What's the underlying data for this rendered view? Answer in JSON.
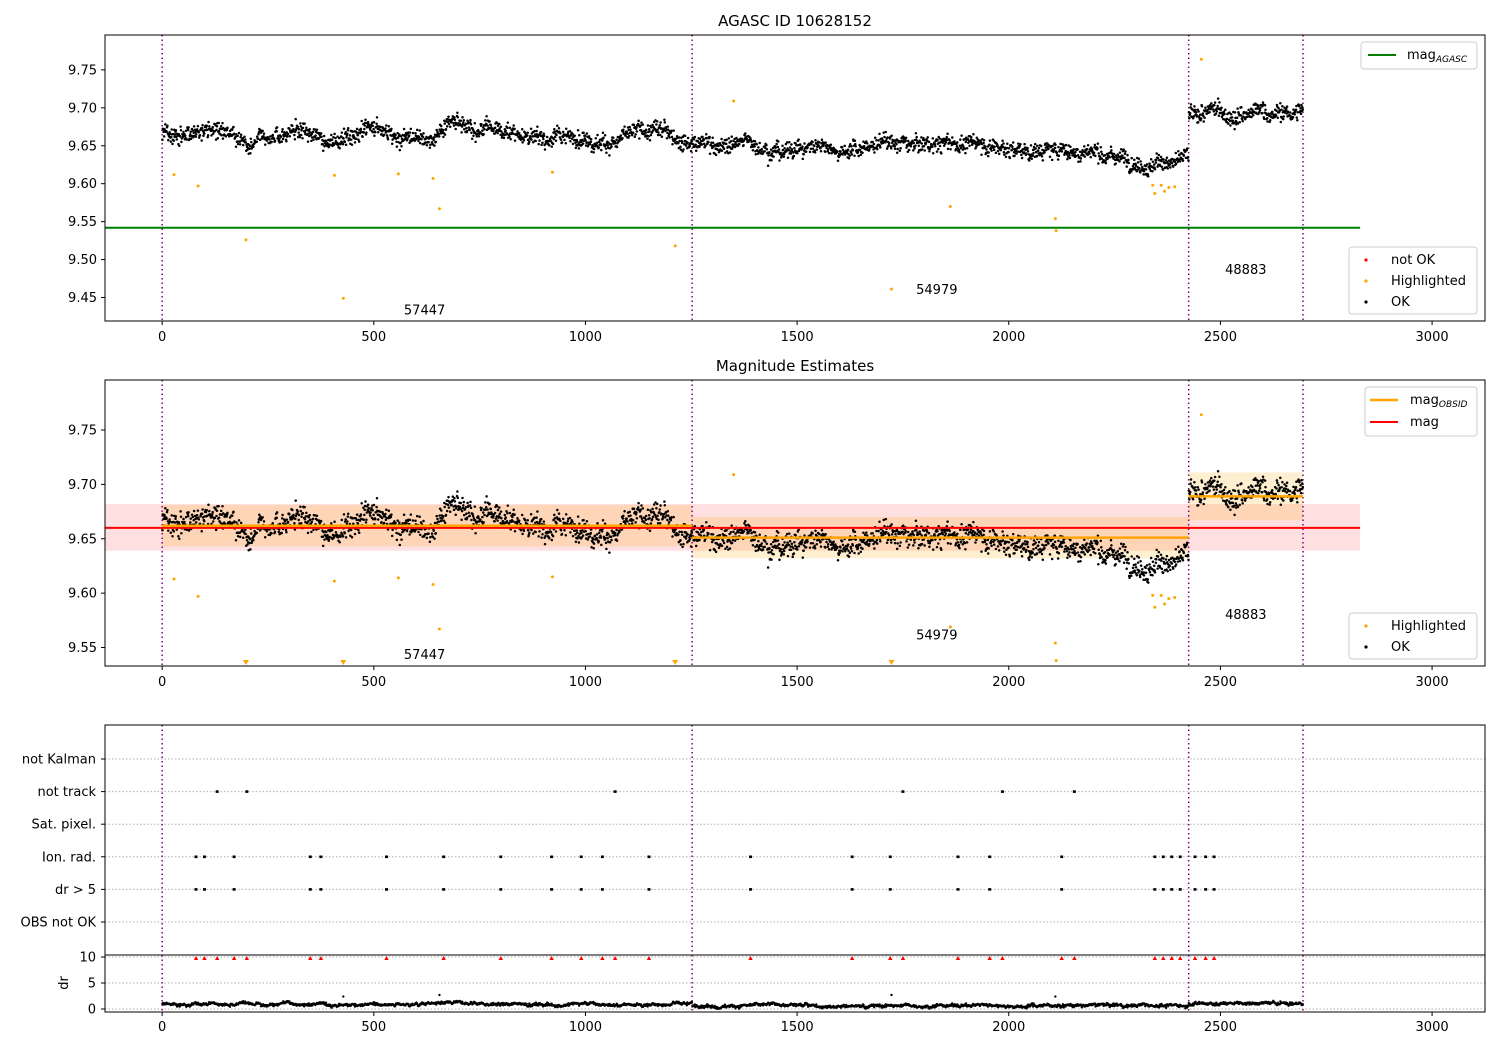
{
  "figure": {
    "colors": {
      "ok": "#000000",
      "highlighted": "#ffa500",
      "not_ok": "#ff0000",
      "agasc": "#008000",
      "obsid_mag": "#ffa500",
      "mag": "#ff0000",
      "obs_boundary": "#800080"
    }
  },
  "chart_data": [
    {
      "type": "scatter",
      "title": "AGASC ID 10628152",
      "xlabel": "",
      "ylabel": "",
      "xlim": [
        -135,
        3125
      ],
      "ylim": [
        9.419,
        9.796
      ],
      "xticks": [
        0,
        500,
        1000,
        1500,
        2000,
        2500,
        3000
      ],
      "yticks": [
        9.45,
        9.5,
        9.55,
        9.6,
        9.65,
        9.7,
        9.75
      ],
      "grid": false,
      "obs_boundaries": [
        0,
        1252,
        2425,
        2695
      ],
      "obs_labels": [
        {
          "text": "57447",
          "x": 620,
          "y": 9.433
        },
        {
          "text": "54979",
          "x": 1830,
          "y": 9.46
        },
        {
          "text": "48883",
          "x": 2560,
          "y": 9.486
        }
      ],
      "ok_segments": [
        {
          "x0": 0,
          "x1": 1252,
          "mean": 9.663,
          "spread": 0.018
        },
        {
          "x0": 1252,
          "x1": 2425,
          "mean": 9.652,
          "spread": 0.018,
          "trend": -0.018
        },
        {
          "x0": 2425,
          "x1": 2695,
          "mean": 9.69,
          "spread": 0.02
        }
      ],
      "highlighted_points": [
        {
          "x": 28,
          "y": 9.612
        },
        {
          "x": 85,
          "y": 9.597
        },
        {
          "x": 198,
          "y": 9.526
        },
        {
          "x": 407,
          "y": 9.611
        },
        {
          "x": 428,
          "y": 9.449
        },
        {
          "x": 558,
          "y": 9.613
        },
        {
          "x": 640,
          "y": 9.607
        },
        {
          "x": 655,
          "y": 9.567
        },
        {
          "x": 922,
          "y": 9.615
        },
        {
          "x": 1212,
          "y": 9.518
        },
        {
          "x": 1350,
          "y": 9.709
        },
        {
          "x": 1723,
          "y": 9.461
        },
        {
          "x": 1862,
          "y": 9.57
        },
        {
          "x": 2110,
          "y": 9.554
        },
        {
          "x": 2112,
          "y": 9.538
        },
        {
          "x": 2340,
          "y": 9.598
        },
        {
          "x": 2345,
          "y": 9.587
        },
        {
          "x": 2360,
          "y": 9.598
        },
        {
          "x": 2368,
          "y": 9.59
        },
        {
          "x": 2378,
          "y": 9.595
        },
        {
          "x": 2392,
          "y": 9.596
        },
        {
          "x": 2455,
          "y": 9.764
        }
      ],
      "hlines": [
        {
          "name": "mag_AGASC",
          "y": 9.542,
          "x0": -135,
          "x1": 2830
        }
      ],
      "legends": [
        {
          "position": "top-right",
          "entries": [
            {
              "label": "mag",
              "sub": "AGASC",
              "kind": "line"
            }
          ]
        },
        {
          "position": "lower-right",
          "entries": [
            {
              "label": "not OK",
              "kind": "dot-red"
            },
            {
              "label": "Highlighted",
              "kind": "dot-orange"
            },
            {
              "label": "OK",
              "kind": "dot-black"
            }
          ]
        }
      ]
    },
    {
      "type": "scatter",
      "title": "Magnitude Estimates",
      "xlabel": "",
      "ylabel": "",
      "xlim": [
        -135,
        3125
      ],
      "ylim": [
        9.533,
        9.796
      ],
      "xticks": [
        0,
        500,
        1000,
        1500,
        2000,
        2500,
        3000
      ],
      "yticks": [
        9.55,
        9.6,
        9.65,
        9.7,
        9.75
      ],
      "grid": false,
      "obs_boundaries": [
        0,
        1252,
        2425,
        2695
      ],
      "obs_labels": [
        {
          "text": "57447",
          "x": 620,
          "y": 9.543
        },
        {
          "text": "54979",
          "x": 1830,
          "y": 9.561
        },
        {
          "text": "48883",
          "x": 2560,
          "y": 9.58
        }
      ],
      "mag": {
        "y": 9.66,
        "band": [
          9.639,
          9.682
        ],
        "x0": -135,
        "x1": 2830
      },
      "obsid_mag": [
        {
          "x0": 0,
          "x1": 1252,
          "y": 9.662,
          "band": [
            9.643,
            9.681
          ]
        },
        {
          "x0": 1252,
          "x1": 2425,
          "y": 9.651,
          "band": [
            9.632,
            9.67
          ]
        },
        {
          "x0": 2425,
          "x1": 2695,
          "y": 9.689,
          "band": [
            9.667,
            9.711
          ]
        }
      ],
      "highlighted_points": [
        {
          "x": 28,
          "y": 9.613
        },
        {
          "x": 85,
          "y": 9.597
        },
        {
          "x": 407,
          "y": 9.611
        },
        {
          "x": 558,
          "y": 9.614
        },
        {
          "x": 640,
          "y": 9.608
        },
        {
          "x": 655,
          "y": 9.567
        },
        {
          "x": 922,
          "y": 9.615
        },
        {
          "x": 1350,
          "y": 9.709
        },
        {
          "x": 1862,
          "y": 9.569
        },
        {
          "x": 2110,
          "y": 9.554
        },
        {
          "x": 2112,
          "y": 9.538
        },
        {
          "x": 2340,
          "y": 9.598
        },
        {
          "x": 2345,
          "y": 9.587
        },
        {
          "x": 2360,
          "y": 9.598
        },
        {
          "x": 2368,
          "y": 9.59
        },
        {
          "x": 2378,
          "y": 9.595
        },
        {
          "x": 2392,
          "y": 9.596
        },
        {
          "x": 2455,
          "y": 9.764
        }
      ],
      "off_scale_markers_x": [
        198,
        428,
        1212,
        1723
      ],
      "legends": [
        {
          "position": "top-right",
          "entries": [
            {
              "label": "mag",
              "sub": "OBSID",
              "kind": "line-orange"
            },
            {
              "label": "mag",
              "kind": "line-red"
            }
          ]
        },
        {
          "position": "lower-right",
          "entries": [
            {
              "label": "Highlighted",
              "kind": "dot-orange"
            },
            {
              "label": "OK",
              "kind": "dot-black"
            }
          ]
        }
      ]
    },
    {
      "type": "scatter",
      "title": "",
      "xlim": [
        -135,
        3125
      ],
      "categories": [
        "not Kalman",
        "not track",
        "Sat. pixel.",
        "Ion. rad.",
        "dr > 5",
        "OBS not OK"
      ],
      "flags": {
        "not track": [
          130,
          200,
          1070,
          1750,
          1985,
          2155
        ],
        "Ion. rad.": [
          80,
          100,
          170,
          350,
          375,
          530,
          665,
          800,
          920,
          990,
          1040,
          1150,
          1390,
          1630,
          1720,
          1880,
          1955,
          2125,
          2345,
          2365,
          2385,
          2405,
          2440,
          2465,
          2485
        ],
        "dr > 5": [
          80,
          100,
          170,
          350,
          375,
          530,
          665,
          800,
          920,
          990,
          1040,
          1150,
          1390,
          1630,
          1720,
          1880,
          1955,
          2125,
          2345,
          2365,
          2385,
          2405,
          2440,
          2465,
          2485
        ]
      },
      "obs_boundaries": [
        0,
        1252,
        2425,
        2695
      ]
    },
    {
      "type": "scatter",
      "title": "",
      "ylabel": "dr",
      "xlim": [
        -135,
        3125
      ],
      "ylim": [
        0,
        10
      ],
      "yticks": [
        0,
        5,
        10
      ],
      "xticks": [
        0,
        500,
        1000,
        1500,
        2000,
        2500,
        3000
      ],
      "clipped_markers_x": [
        80,
        100,
        130,
        170,
        200,
        350,
        375,
        530,
        665,
        800,
        920,
        990,
        1040,
        1070,
        1150,
        1390,
        1630,
        1720,
        1750,
        1880,
        1955,
        1985,
        2125,
        2155,
        2345,
        2365,
        2385,
        2405,
        2440,
        2465,
        2485
      ],
      "segments": [
        {
          "x0": 0,
          "x1": 1252,
          "mean": 0.9
        },
        {
          "x0": 1252,
          "x1": 2425,
          "mean": 0.7
        },
        {
          "x0": 2425,
          "x1": 2695,
          "mean": 1.1
        }
      ],
      "spikes": [
        {
          "x": 428,
          "y": 2.4
        },
        {
          "x": 655,
          "y": 2.7
        },
        {
          "x": 1723,
          "y": 2.7
        },
        {
          "x": 2110,
          "y": 2.4
        }
      ],
      "obs_boundaries": [
        0,
        1252,
        2425,
        2695
      ]
    }
  ]
}
